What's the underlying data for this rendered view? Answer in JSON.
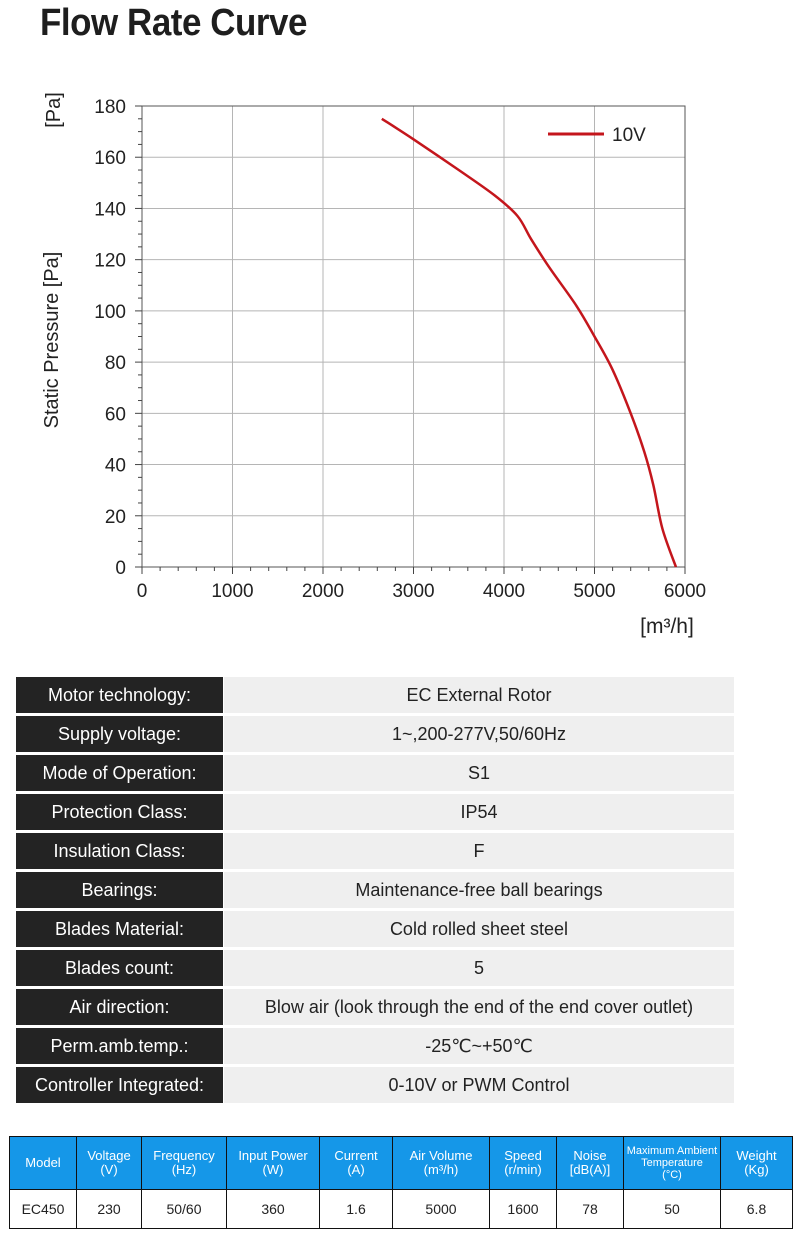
{
  "title": "Flow Rate Curve",
  "chart_data": {
    "type": "line",
    "ylabel": "Static Pressure [Pa]",
    "yunit_top": "[Pa]",
    "xunit": "[m³/h]",
    "xlim": [
      0,
      6000
    ],
    "ylim": [
      0,
      180
    ],
    "xticks": [
      "0",
      "1000",
      "2000",
      "3000",
      "4000",
      "5000",
      "6000"
    ],
    "yticks": [
      "0",
      "20",
      "40",
      "60",
      "80",
      "100",
      "120",
      "140",
      "160",
      "180"
    ],
    "grid": true,
    "legend_position": "top-right",
    "series_color": "#c4161c",
    "series": [
      {
        "name": "10V",
        "x": [
          2650,
          3000,
          3500,
          3900,
          4150,
          4300,
          4500,
          4800,
          5000,
          5200,
          5400,
          5550,
          5650,
          5750,
          5900
        ],
        "y": [
          175,
          167,
          155,
          145,
          137,
          128,
          117,
          102,
          90,
          77,
          60,
          45,
          32,
          15,
          0
        ]
      }
    ]
  },
  "specs": [
    {
      "key": "Motor technology:",
      "value": "EC External Rotor"
    },
    {
      "key": "Supply voltage:",
      "value": "1~,200-277V,50/60Hz"
    },
    {
      "key": "Mode of Operation:",
      "value": "S1"
    },
    {
      "key": "Protection Class:",
      "value": "IP54"
    },
    {
      "key": "Insulation Class:",
      "value": "F"
    },
    {
      "key": "Bearings:",
      "value": "Maintenance-free ball bearings"
    },
    {
      "key": "Blades Material:",
      "value": "Cold rolled sheet steel"
    },
    {
      "key": "Blades count:",
      "value": "5"
    },
    {
      "key": "Air direction:",
      "value": "Blow air (look through the end of the end cover outlet)"
    },
    {
      "key": "Perm.amb.temp.:",
      "value": "-25℃~+50℃"
    },
    {
      "key": "Controller Integrated:",
      "value": "0-10V or PWM Control"
    }
  ],
  "model_table": {
    "header_color": "#1597e8",
    "headers": [
      {
        "line1": "Model",
        "line2": ""
      },
      {
        "line1": "Voltage",
        "line2": "(V)"
      },
      {
        "line1": "Frequency",
        "line2": "(Hz)"
      },
      {
        "line1": "Input Power",
        "line2": "(W)"
      },
      {
        "line1": "Current",
        "line2": "(A)"
      },
      {
        "line1": "Air Volume",
        "line2": "(m³/h)"
      },
      {
        "line1": "Speed",
        "line2": "(r/min)"
      },
      {
        "line1": "Noise",
        "line2": "[dB(A)]"
      },
      {
        "line1": "Maximum Ambient Temperature",
        "line2": "(°C)"
      },
      {
        "line1": "Weight",
        "line2": "(Kg)"
      }
    ],
    "row": [
      "EC450",
      "230",
      "50/60",
      "360",
      "1.6",
      "5000",
      "1600",
      "78",
      "50",
      "6.8"
    ]
  }
}
